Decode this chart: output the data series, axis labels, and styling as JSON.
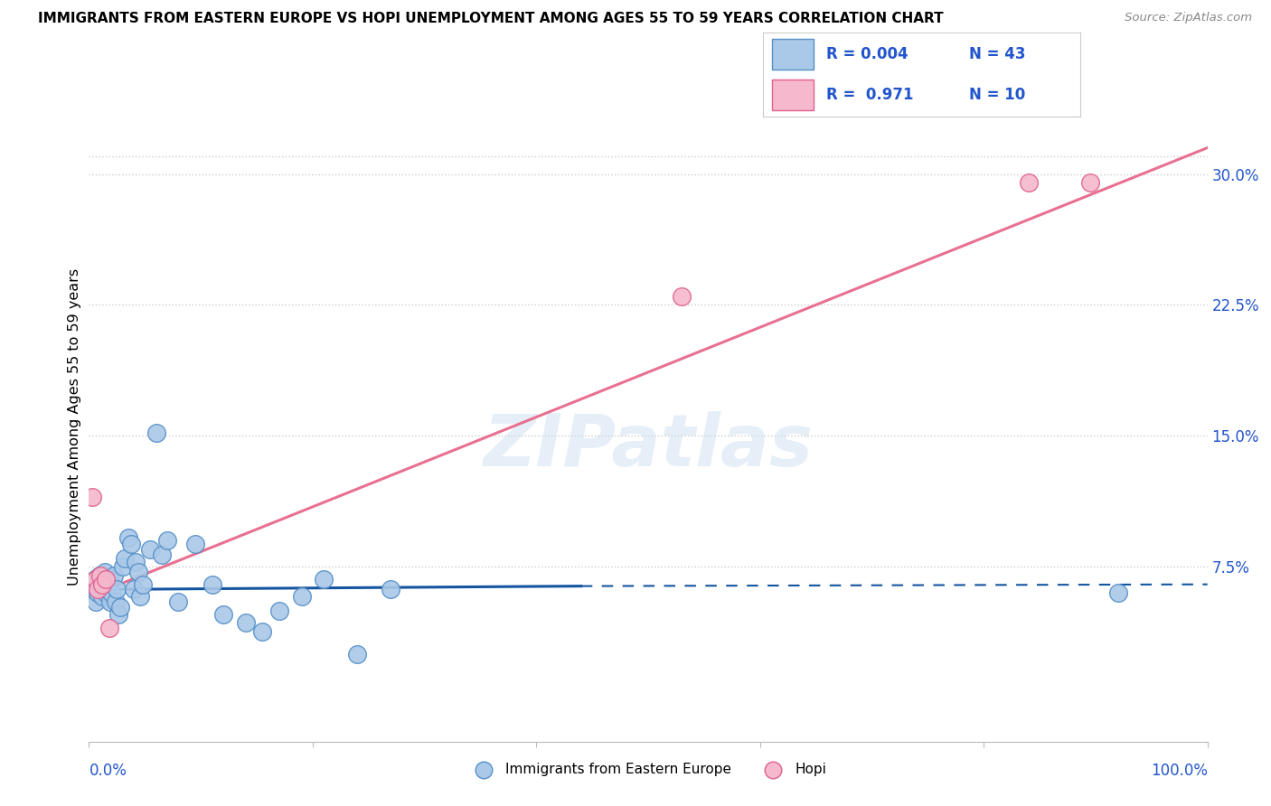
{
  "title": "IMMIGRANTS FROM EASTERN EUROPE VS HOPI UNEMPLOYMENT AMONG AGES 55 TO 59 YEARS CORRELATION CHART",
  "source": "Source: ZipAtlas.com",
  "ylabel": "Unemployment Among Ages 55 to 59 years",
  "ytick_vals": [
    0,
    0.075,
    0.15,
    0.225,
    0.3
  ],
  "ytick_labels": [
    "",
    "7.5%",
    "15.0%",
    "22.5%",
    "30.0%"
  ],
  "xlim": [
    0,
    1.0
  ],
  "ylim": [
    -0.025,
    0.335
  ],
  "blue_scatter_x": [
    0.003,
    0.005,
    0.006,
    0.008,
    0.009,
    0.01,
    0.012,
    0.014,
    0.015,
    0.016,
    0.018,
    0.019,
    0.02,
    0.022,
    0.024,
    0.025,
    0.026,
    0.028,
    0.03,
    0.032,
    0.035,
    0.038,
    0.04,
    0.042,
    0.044,
    0.046,
    0.048,
    0.055,
    0.06,
    0.065,
    0.07,
    0.08,
    0.095,
    0.11,
    0.12,
    0.14,
    0.155,
    0.17,
    0.19,
    0.21,
    0.24,
    0.27,
    0.92
  ],
  "blue_scatter_y": [
    0.062,
    0.068,
    0.055,
    0.06,
    0.07,
    0.065,
    0.058,
    0.072,
    0.06,
    0.065,
    0.068,
    0.055,
    0.06,
    0.07,
    0.055,
    0.062,
    0.048,
    0.052,
    0.075,
    0.08,
    0.092,
    0.088,
    0.062,
    0.078,
    0.072,
    0.058,
    0.065,
    0.085,
    0.152,
    0.082,
    0.09,
    0.055,
    0.088,
    0.065,
    0.048,
    0.043,
    0.038,
    0.05,
    0.058,
    0.068,
    0.025,
    0.062,
    0.06
  ],
  "pink_scatter_x": [
    0.003,
    0.006,
    0.008,
    0.01,
    0.012,
    0.015,
    0.018,
    0.53,
    0.84,
    0.895
  ],
  "pink_scatter_y": [
    0.115,
    0.068,
    0.062,
    0.07,
    0.065,
    0.068,
    0.04,
    0.23,
    0.295,
    0.295
  ],
  "blue_solid_line_x": [
    0.0,
    0.44
  ],
  "blue_solid_line_y": [
    0.062,
    0.064
  ],
  "blue_dashed_line_x": [
    0.44,
    1.0
  ],
  "blue_dashed_line_y": [
    0.064,
    0.065
  ],
  "pink_line_x": [
    0.0,
    1.0
  ],
  "pink_line_y": [
    0.058,
    0.315
  ],
  "dotted_line_y": 0.075,
  "blue_scatter_color": "#aac8e8",
  "blue_scatter_edge": "#5590c8",
  "pink_scatter_color": "#f5b8cc",
  "pink_scatter_edge": "#e06090",
  "blue_solid_color": "#1555a0",
  "pink_line_color": "#e87090",
  "grid_dotted_color": "#cccccc",
  "watermark": "ZIPatlas",
  "legend_r_blue": "R = 0.004",
  "legend_n_blue": "N = 43",
  "legend_r_pink": "R =  0.971",
  "legend_n_pink": "N = 10",
  "bottom_legend_blue": "Immigrants from Eastern Europe",
  "bottom_legend_pink": "Hopi"
}
